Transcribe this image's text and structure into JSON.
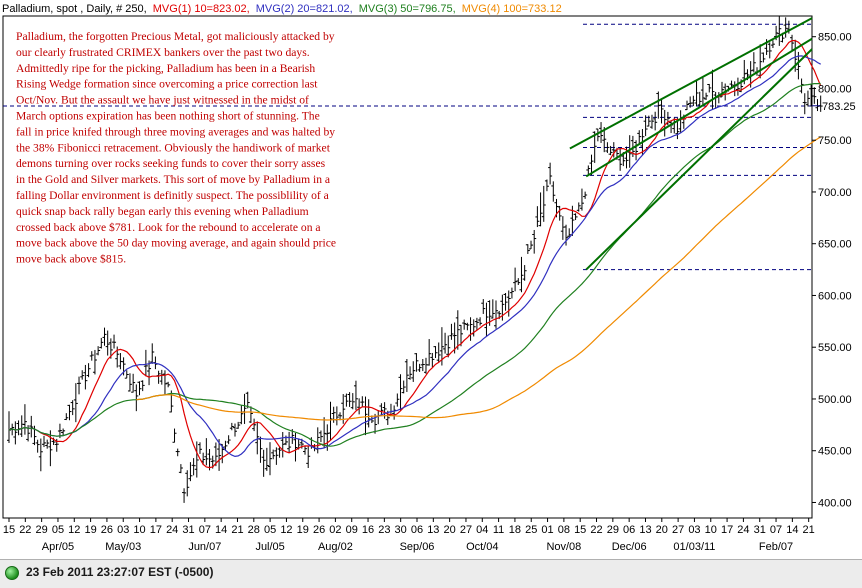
{
  "header": {
    "symbol": "Palladium, spot , Daily, # 250,",
    "mvg1": "MVG(1) 10=823.02,",
    "mvg2": "MVG(2) 20=821.02,",
    "mvg3": "MVG(3) 50=796.75,",
    "mvg4": "MVG(4) 100=733.12",
    "mvg1_color": "#e00000",
    "mvg2_color": "#3030c0",
    "mvg3_color": "#208020",
    "mvg4_color": "#f08a00"
  },
  "annotation_lines": [
    "Palladium, the forgotten Precious Metal, got maliciously attacked by",
    "our clearly frustrated CRIMEX bankers over the past two days.",
    "Admittedly ripe for the picking, Palladium has been in a Bearish",
    "Rising Wedge formation since overcoming a price correction last",
    "Oct/Nov.  But the assault we have just witnessed in the midst of",
    "March options expiration has been nothing short of stunning.  The",
    "fall in price knifed through three moving averages and was halted by",
    "the 38%  Fibonicci retracement.  Obviously the handiwork of market",
    "demons turning over rocks seeking funds to cover their sorry asses",
    "in the Gold and Silver markets.  This sort of move by Palladium in a",
    "falling Dollar environment is definitly suspect.  The possiblility of a",
    "quick snap back rally began early this evening when Palladium",
    "crossed back above $781.  Look for the rebound to accelerate on a",
    "move back above the 50 day moving average, and again should price",
    "move back above $815."
  ],
  "status": {
    "timestamp": "23 Feb 2011 23:27:07  EST (-0500)"
  },
  "chart_data": {
    "type": "ohlc",
    "ylim": [
      385,
      870
    ],
    "yticks": [
      400,
      450,
      500,
      550,
      600,
      650,
      700,
      750,
      800,
      850
    ],
    "ytick_labels": [
      "400.00",
      "450.00",
      "500.00",
      "550.00",
      "600.00",
      "650.00",
      "700.00",
      "750.00",
      "800.00",
      "850.00"
    ],
    "last_price_label": "783.25",
    "last_price": 783.25,
    "day_ticks": [
      "15",
      "22",
      "29",
      "05",
      "12",
      "19",
      "26",
      "03",
      "10",
      "17",
      "24",
      "31",
      "07",
      "14",
      "21",
      "28",
      "05",
      "12",
      "19",
      "26",
      "02",
      "09",
      "16",
      "23",
      "30",
      "06",
      "13",
      "20",
      "27",
      "04",
      "11",
      "18",
      "25",
      "01",
      "08",
      "15",
      "22",
      "29",
      "06",
      "13",
      "20",
      "27",
      "03",
      "10",
      "17",
      "24",
      "31",
      "07",
      "14",
      "21"
    ],
    "month_labels": [
      {
        "label": "Apr/05",
        "tick_index": 3
      },
      {
        "label": "May/03",
        "tick_index": 7
      },
      {
        "label": "Jun/07",
        "tick_index": 12
      },
      {
        "label": "Jul/05",
        "tick_index": 16
      },
      {
        "label": "Aug/02",
        "tick_index": 20
      },
      {
        "label": "Sep/06",
        "tick_index": 25
      },
      {
        "label": "Oct/04",
        "tick_index": 29
      },
      {
        "label": "Nov/08",
        "tick_index": 34
      },
      {
        "label": "Dec/06",
        "tick_index": 38
      },
      {
        "label": "01/03/11",
        "tick_index": 42
      },
      {
        "label": "Feb/07",
        "tick_index": 47
      }
    ],
    "weekly_closes": [
      470,
      478,
      452,
      460,
      495,
      530,
      560,
      540,
      505,
      540,
      510,
      415,
      445,
      440,
      470,
      490,
      440,
      452,
      460,
      448,
      472,
      495,
      495,
      482,
      488,
      525,
      538,
      548,
      562,
      570,
      585,
      590,
      612,
      655,
      710,
      650,
      690,
      755,
      735,
      730,
      765,
      780,
      762,
      790,
      795,
      800,
      808,
      822,
      848,
      860,
      790,
      783
    ],
    "horizontal_levels": [
      862,
      783,
      772,
      743,
      716,
      625
    ],
    "wedge_lines": [
      {
        "from": [
          34,
          742
        ],
        "to": [
          51,
          868
        ]
      },
      {
        "from": [
          35,
          625
        ],
        "to": [
          51,
          838
        ]
      },
      {
        "from": [
          35,
          715
        ],
        "to": [
          51,
          848
        ]
      }
    ]
  }
}
